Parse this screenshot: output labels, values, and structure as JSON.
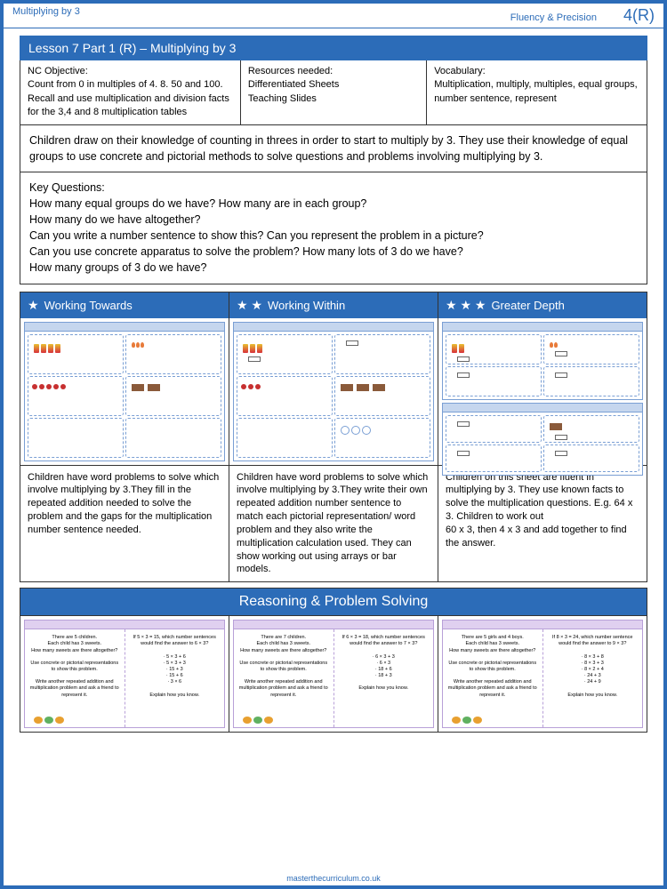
{
  "header": {
    "left": "Multiplying by 3",
    "right_label": "Fluency & Precision",
    "page": "4(R)"
  },
  "lesson_title": "Lesson 7 Part 1 (R) – Multiplying by 3",
  "info": {
    "nc_label": "NC Objective:",
    "nc_text": "Count from 0 in multiples of 4. 8. 50 and 100.\nRecall and use multiplication and division facts for the 3,4 and 8 multiplication tables",
    "res_label": "Resources needed:",
    "res_text": "Differentiated Sheets\nTeaching Slides",
    "vocab_label": "Vocabulary:",
    "vocab_text": "Multiplication, multiply, multiples, equal groups, number sentence, represent"
  },
  "intro": "Children draw on their knowledge of counting in threes in order to start to multiply by 3. They use their knowledge of equal groups to use concrete and pictorial methods to solve questions and problems involving multiplying by 3.",
  "key_q_label": "Key Questions:",
  "key_q": "How many equal groups do we have? How many are in each group?\nHow many do we have altogether?\nCan you write a number sentence to show this? Can you represent the problem in a picture?\nCan you use concrete apparatus to solve the problem? How many lots of 3 do we have?\nHow many groups of 3 do we have?",
  "cols": [
    {
      "stars": 1,
      "title": "Working Towards",
      "desc": "Children have word problems to solve which involve multiplying by 3.They fill in the repeated addition needed to solve the problem and the gaps for the multiplication number sentence needed."
    },
    {
      "stars": 2,
      "title": "Working Within",
      "desc": "Children have word problems to solve which involve multiplying by 3.They write their own repeated addition number sentence to match each pictorial representation/ word problem and they also write the multiplication calculation used. They can show working out using arrays or bar models."
    },
    {
      "stars": 3,
      "title": "Greater Depth",
      "desc": "Children on this sheet are fluent in multiplying by 3. They use known facts to solve the multiplication questions. E.g. 64 x 3. Children to work out\n60 x 3, then 4 x 3 and add together to find the answer."
    }
  ],
  "rps_title": "Reasoning & Problem Solving",
  "rps": [
    {
      "left": "There are 5 children.\nEach child has 3 sweets.\nHow many sweets are there altogether?\n\nUse concrete or pictorial representations to show this problem.\n\nWrite another repeated addition and multiplication problem and ask a friend to represent it.",
      "right": "If 5 × 3 = 15, which number sentences would find the answer to 6 × 3?\n\n· 5 × 3 + 6\n· 5 × 3 + 3\n· 15 + 3\n· 15 + 6\n· 3 × 6\n\nExplain how you know."
    },
    {
      "left": "There are 7 children.\nEach child has 3 sweets.\nHow many sweets are there altogether?\n\nUse concrete or pictorial representations to show this problem.\n\nWrite another repeated addition and multiplication problem and ask a friend to represent it.",
      "right": "If 6 × 3 = 18, which number sentences would find the answer to 7 × 3?\n\n· 6 × 3 + 3\n· 6 × 3\n· 18 + 6\n· 18 + 3\n\nExplain how you know."
    },
    {
      "left": "There are 5 girls and 4 boys.\nEach child has 3 sweets.\nHow many sweets are there altogether?\n\nUse concrete or pictorial representations to show this problem.\n\nWrite another repeated addition and multiplication problem and ask a friend to represent it.",
      "right": "If 8 × 3 = 24, which number sentence would find the answer to 9 × 3?\n\n· 8 × 3 + 8\n· 8 × 3 + 3\n· 8 × 2 + 4\n· 24 + 3\n· 24 + 9\n\nExplain how you know."
    }
  ],
  "footer": "masterthecurriculum.co.uk",
  "colors": {
    "primary": "#2c6cb8",
    "purple": "#b8a0d8"
  }
}
